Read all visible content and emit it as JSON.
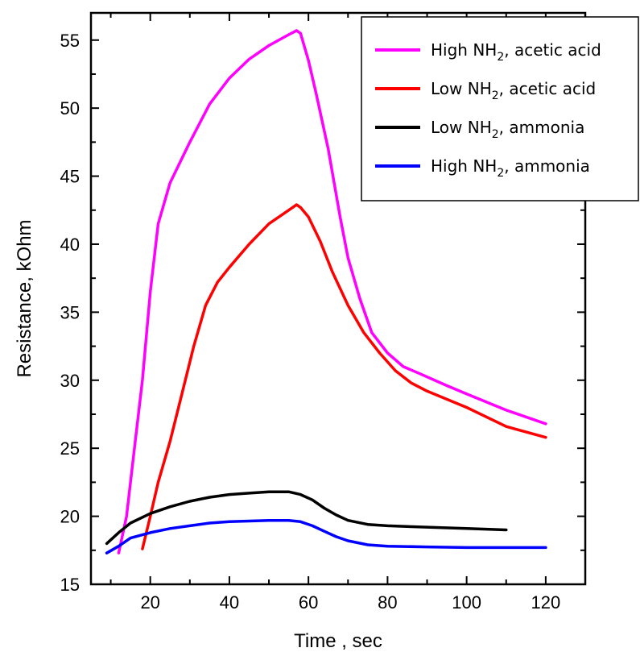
{
  "chart_data": {
    "type": "line",
    "title": "",
    "xlabel": "Time , sec",
    "ylabel": "Resistance, kOhm",
    "xlim": [
      5,
      130
    ],
    "ylim": [
      15,
      57
    ],
    "xticks": [
      20,
      40,
      60,
      80,
      100,
      120
    ],
    "yticks": [
      15,
      20,
      25,
      30,
      35,
      40,
      45,
      50,
      55
    ],
    "grid": false,
    "legend_position": "top-right",
    "series": [
      {
        "name": "High NH2, acetic acid",
        "legend_main": "High NH",
        "legend_sub": "2",
        "legend_tail": ", acetic acid",
        "color": "#ff00ff",
        "points": [
          [
            12,
            17.3
          ],
          [
            14,
            20
          ],
          [
            16,
            25
          ],
          [
            18,
            30
          ],
          [
            20,
            36.5
          ],
          [
            22,
            41.5
          ],
          [
            25,
            44.5
          ],
          [
            30,
            47.5
          ],
          [
            35,
            50.3
          ],
          [
            40,
            52.2
          ],
          [
            45,
            53.6
          ],
          [
            50,
            54.6
          ],
          [
            55,
            55.4
          ],
          [
            57,
            55.7
          ],
          [
            58,
            55.5
          ],
          [
            60,
            53.5
          ],
          [
            62,
            51
          ],
          [
            65,
            47
          ],
          [
            68,
            42
          ],
          [
            70,
            39
          ],
          [
            73,
            36
          ],
          [
            76,
            33.5
          ],
          [
            80,
            32
          ],
          [
            84,
            31
          ],
          [
            88,
            30.5
          ],
          [
            95,
            29.6
          ],
          [
            100,
            29
          ],
          [
            110,
            27.8
          ],
          [
            120,
            26.8
          ]
        ]
      },
      {
        "name": "Low NH2, acetic acid",
        "legend_main": "Low NH",
        "legend_sub": "2",
        "legend_tail": ", acetic acid",
        "color": "#ff0000",
        "points": [
          [
            18,
            17.6
          ],
          [
            20,
            20
          ],
          [
            22,
            22.5
          ],
          [
            25,
            25.5
          ],
          [
            28,
            29
          ],
          [
            31,
            32.5
          ],
          [
            34,
            35.5
          ],
          [
            37,
            37.2
          ],
          [
            40,
            38.3
          ],
          [
            45,
            40
          ],
          [
            50,
            41.5
          ],
          [
            55,
            42.5
          ],
          [
            57,
            42.9
          ],
          [
            58,
            42.7
          ],
          [
            60,
            42
          ],
          [
            63,
            40.2
          ],
          [
            66,
            38
          ],
          [
            70,
            35.5
          ],
          [
            74,
            33.5
          ],
          [
            78,
            32
          ],
          [
            82,
            30.7
          ],
          [
            86,
            29.8
          ],
          [
            90,
            29.2
          ],
          [
            100,
            28
          ],
          [
            110,
            26.6
          ],
          [
            120,
            25.8
          ]
        ]
      },
      {
        "name": "Low NH2, ammonia",
        "legend_main": "Low NH",
        "legend_sub": "2",
        "legend_tail": ", ammonia",
        "color": "#000000",
        "points": [
          [
            9,
            18
          ],
          [
            12,
            18.8
          ],
          [
            15,
            19.5
          ],
          [
            20,
            20.2
          ],
          [
            25,
            20.7
          ],
          [
            30,
            21.1
          ],
          [
            35,
            21.4
          ],
          [
            40,
            21.6
          ],
          [
            45,
            21.7
          ],
          [
            50,
            21.8
          ],
          [
            55,
            21.8
          ],
          [
            58,
            21.6
          ],
          [
            61,
            21.2
          ],
          [
            64,
            20.6
          ],
          [
            67,
            20.1
          ],
          [
            70,
            19.7
          ],
          [
            75,
            19.4
          ],
          [
            80,
            19.3
          ],
          [
            90,
            19.2
          ],
          [
            100,
            19.1
          ],
          [
            110,
            19
          ]
        ]
      },
      {
        "name": "High NH2, ammonia",
        "legend_main": "High NH",
        "legend_sub": "2",
        "legend_tail": ", ammonia",
        "color": "#0000ff",
        "points": [
          [
            9,
            17.3
          ],
          [
            12,
            17.8
          ],
          [
            15,
            18.4
          ],
          [
            20,
            18.8
          ],
          [
            25,
            19.1
          ],
          [
            30,
            19.3
          ],
          [
            35,
            19.5
          ],
          [
            40,
            19.6
          ],
          [
            45,
            19.65
          ],
          [
            50,
            19.7
          ],
          [
            55,
            19.7
          ],
          [
            58,
            19.6
          ],
          [
            61,
            19.3
          ],
          [
            64,
            18.9
          ],
          [
            67,
            18.5
          ],
          [
            70,
            18.2
          ],
          [
            75,
            17.9
          ],
          [
            80,
            17.8
          ],
          [
            90,
            17.75
          ],
          [
            100,
            17.7
          ],
          [
            110,
            17.7
          ],
          [
            120,
            17.7
          ]
        ]
      }
    ]
  }
}
